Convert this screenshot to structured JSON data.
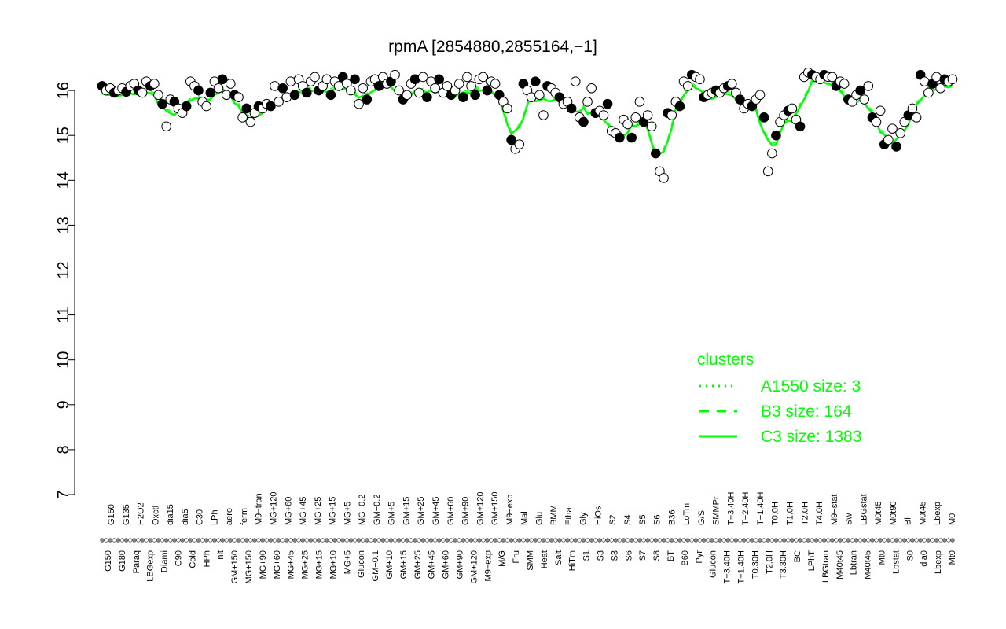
{
  "chart_data": {
    "type": "scatter",
    "title": "rpmA [2854880,2855164,−1]",
    "xlabel": "",
    "ylabel": "",
    "ylim": [
      7,
      16.5
    ],
    "yticks": [
      7,
      8,
      9,
      10,
      11,
      12,
      13,
      14,
      15,
      16
    ],
    "grid": false,
    "legend": {
      "title": "clusters",
      "position": "bottom-right",
      "entries": [
        {
          "label": "A1550 size: 3",
          "style": "dotted"
        },
        {
          "label": "B3 size: 164",
          "style": "dashed"
        },
        {
          "label": "C3 size: 1383",
          "style": "solid"
        }
      ]
    },
    "colors": {
      "clusters": "#00ff00",
      "points": "#000000"
    },
    "xtick_labels_top": [
      "G150",
      "G135",
      "H2O2",
      "Oxctl",
      "dia15",
      "dia5",
      "C30",
      "LPh",
      "aero",
      "ferm",
      "M9−tran",
      "MG+120",
      "MG+60",
      "MG+45",
      "MG+25",
      "MG+15",
      "MG+5",
      "MG−0.2",
      "GM−0.2",
      "GM+5",
      "GM+15",
      "GM+25",
      "GM+45",
      "GM+60",
      "GM+90",
      "GM+120",
      "GM+150",
      "M9−exp",
      "Mal",
      "Glu",
      "BMM",
      "Etha",
      "Gly",
      "HiOs",
      "S2",
      "S4",
      "S5",
      "S6",
      "B36",
      "LoTm",
      "G/S",
      "SMMPr",
      "T−3.40H",
      "T−2.40H",
      "T−1.40H",
      "T0.0H",
      "T1.0H",
      "T2.0H",
      "T4.0H",
      "M9−stat",
      "Sw",
      "LBGstat",
      "M0t45",
      "M0t90",
      "Bl",
      "M0t45",
      "Lbexp",
      "M0"
    ],
    "xtick_labels_bottom": [
      "G150",
      "G180",
      "Paraq",
      "LBGexp",
      "Diami",
      "C90",
      "Cold",
      "HPh",
      "nit",
      "GM+150",
      "MG+150",
      "MG+90",
      "MG+60",
      "MG+45",
      "MG+25",
      "MG+15",
      "MG+10",
      "MG+5",
      "Glucon",
      "GM−0.1",
      "GM+10",
      "GM+15",
      "GM+25",
      "GM+45",
      "GM+60",
      "GM+90",
      "GM+120",
      "M9−exp",
      "M/G",
      "Fru",
      "SMM",
      "Heat",
      "Salt",
      "HiTm",
      "S1",
      "S3",
      "S3",
      "S6",
      "S7",
      "S8",
      "BT",
      "B60",
      "Pyr",
      "Glucon",
      "T−3.40H",
      "T−1.40H",
      "T0.30H",
      "T2.0H",
      "T3.30H",
      "BC",
      "LPhT",
      "LBGtran",
      "M40t45",
      "Lbtran",
      "M40t45",
      "Mt0",
      "Lbstat",
      "S0",
      "dia0",
      "Lbexp",
      "Mt0"
    ],
    "series": [
      {
        "values": [
          [
            1,
            16.1
          ],
          [
            2,
            16.0
          ],
          [
            3,
            16.05
          ],
          [
            4,
            15.95
          ],
          [
            5,
            16.0
          ],
          [
            6,
            16.05
          ],
          [
            7,
            15.97
          ],
          [
            8,
            16.1
          ],
          [
            9,
            16.15
          ],
          [
            10,
            16.0
          ],
          [
            11,
            15.95
          ],
          [
            12,
            16.2
          ],
          [
            13,
            16.1
          ],
          [
            14,
            16.15
          ],
          [
            15,
            15.9
          ],
          [
            16,
            15.7
          ],
          [
            17,
            15.2
          ],
          [
            18,
            15.8
          ],
          [
            19,
            15.75
          ],
          [
            20,
            15.6
          ],
          [
            21,
            15.5
          ],
          [
            22,
            15.65
          ],
          [
            23,
            16.2
          ],
          [
            24,
            16.1
          ],
          [
            25,
            16.0
          ],
          [
            26,
            15.75
          ],
          [
            27,
            15.65
          ],
          [
            28,
            15.95
          ],
          [
            29,
            16.2
          ],
          [
            30,
            16.05
          ],
          [
            31,
            16.25
          ],
          [
            32,
            15.9
          ],
          [
            33,
            16.15
          ],
          [
            34,
            15.9
          ],
          [
            35,
            15.85
          ],
          [
            36,
            15.4
          ],
          [
            37,
            15.6
          ],
          [
            38,
            15.3
          ],
          [
            39,
            15.5
          ],
          [
            40,
            15.65
          ],
          [
            41,
            15.6
          ],
          [
            42,
            15.7
          ],
          [
            43,
            15.65
          ],
          [
            44,
            16.1
          ],
          [
            45,
            15.75
          ],
          [
            46,
            16.05
          ],
          [
            47,
            15.85
          ],
          [
            48,
            16.2
          ],
          [
            49,
            15.9
          ],
          [
            50,
            16.25
          ],
          [
            51,
            16.1
          ],
          [
            52,
            15.95
          ],
          [
            53,
            16.2
          ],
          [
            54,
            16.3
          ],
          [
            55,
            16.0
          ],
          [
            56,
            16.1
          ],
          [
            57,
            16.25
          ],
          [
            58,
            15.9
          ],
          [
            59,
            16.2
          ],
          [
            60,
            16.1
          ],
          [
            61,
            16.3
          ],
          [
            62,
            16.15
          ],
          [
            63,
            16.0
          ],
          [
            64,
            16.25
          ],
          [
            65,
            15.7
          ],
          [
            66,
            16.05
          ],
          [
            67,
            15.8
          ],
          [
            68,
            16.2
          ],
          [
            69,
            16.25
          ],
          [
            70,
            16.1
          ],
          [
            71,
            16.3
          ],
          [
            72,
            16.15
          ],
          [
            73,
            16.2
          ],
          [
            74,
            16.35
          ],
          [
            75,
            16.0
          ],
          [
            76,
            15.8
          ],
          [
            77,
            15.9
          ],
          [
            78,
            16.15
          ],
          [
            79,
            16.25
          ],
          [
            80,
            15.95
          ],
          [
            81,
            16.3
          ],
          [
            82,
            15.85
          ],
          [
            83,
            16.2
          ],
          [
            84,
            16.05
          ],
          [
            85,
            16.25
          ],
          [
            86,
            15.95
          ],
          [
            87,
            16.1
          ],
          [
            88,
            15.9
          ],
          [
            89,
            16.0
          ],
          [
            90,
            16.15
          ],
          [
            91,
            15.85
          ],
          [
            92,
            16.3
          ],
          [
            93,
            16.1
          ],
          [
            94,
            15.9
          ],
          [
            95,
            16.25
          ],
          [
            96,
            16.3
          ],
          [
            97,
            16.0
          ],
          [
            98,
            16.2
          ],
          [
            99,
            16.15
          ],
          [
            100,
            15.9
          ],
          [
            101,
            15.75
          ],
          [
            102,
            15.6
          ],
          [
            103,
            14.9
          ],
          [
            104,
            14.7
          ],
          [
            105,
            14.8
          ],
          [
            106,
            16.15
          ],
          [
            107,
            16.0
          ],
          [
            108,
            15.85
          ],
          [
            109,
            16.2
          ],
          [
            110,
            15.9
          ],
          [
            111,
            15.45
          ],
          [
            112,
            16.1
          ],
          [
            113,
            16.05
          ],
          [
            114,
            15.95
          ],
          [
            115,
            15.85
          ],
          [
            116,
            15.7
          ],
          [
            117,
            15.75
          ],
          [
            118,
            15.6
          ],
          [
            119,
            16.2
          ],
          [
            120,
            15.4
          ],
          [
            121,
            15.3
          ],
          [
            122,
            15.75
          ],
          [
            123,
            16.05
          ],
          [
            124,
            15.5
          ],
          [
            125,
            15.55
          ],
          [
            126,
            15.45
          ],
          [
            127,
            15.7
          ],
          [
            128,
            15.1
          ],
          [
            129,
            15.05
          ],
          [
            130,
            14.95
          ],
          [
            131,
            15.35
          ],
          [
            132,
            15.25
          ],
          [
            133,
            14.95
          ],
          [
            134,
            15.4
          ],
          [
            135,
            15.75
          ],
          [
            136,
            15.3
          ],
          [
            137,
            15.45
          ],
          [
            138,
            15.2
          ],
          [
            139,
            14.6
          ],
          [
            140,
            14.2
          ],
          [
            141,
            14.05
          ],
          [
            142,
            15.5
          ],
          [
            143,
            15.45
          ],
          [
            144,
            15.75
          ],
          [
            145,
            15.65
          ],
          [
            146,
            16.2
          ],
          [
            147,
            16.1
          ],
          [
            148,
            16.35
          ],
          [
            149,
            16.3
          ],
          [
            150,
            16.25
          ],
          [
            151,
            15.85
          ],
          [
            152,
            15.9
          ],
          [
            153,
            15.95
          ],
          [
            154,
            16.0
          ],
          [
            155,
            15.95
          ],
          [
            156,
            16.05
          ],
          [
            157,
            16.1
          ],
          [
            158,
            16.15
          ],
          [
            159,
            15.95
          ],
          [
            160,
            15.8
          ],
          [
            161,
            15.6
          ],
          [
            162,
            15.7
          ],
          [
            163,
            15.65
          ],
          [
            164,
            15.8
          ],
          [
            165,
            15.9
          ],
          [
            166,
            15.4
          ],
          [
            167,
            14.2
          ],
          [
            168,
            14.6
          ],
          [
            169,
            15.0
          ],
          [
            170,
            15.3
          ],
          [
            171,
            15.45
          ],
          [
            172,
            15.55
          ],
          [
            173,
            15.6
          ],
          [
            174,
            15.35
          ],
          [
            175,
            15.2
          ],
          [
            176,
            16.3
          ],
          [
            177,
            16.4
          ],
          [
            178,
            16.35
          ],
          [
            179,
            16.3
          ],
          [
            180,
            16.25
          ],
          [
            181,
            16.35
          ],
          [
            182,
            16.3
          ],
          [
            183,
            16.3
          ],
          [
            184,
            16.1
          ],
          [
            185,
            16.2
          ],
          [
            186,
            16.15
          ],
          [
            187,
            15.8
          ],
          [
            188,
            15.75
          ],
          [
            189,
            15.9
          ],
          [
            190,
            16.0
          ],
          [
            191,
            15.8
          ],
          [
            192,
            16.1
          ],
          [
            193,
            15.4
          ],
          [
            194,
            15.3
          ],
          [
            195,
            15.55
          ],
          [
            196,
            14.8
          ],
          [
            197,
            14.9
          ],
          [
            198,
            15.15
          ],
          [
            199,
            14.75
          ],
          [
            200,
            15.05
          ],
          [
            201,
            15.3
          ],
          [
            202,
            15.45
          ],
          [
            203,
            15.6
          ],
          [
            204,
            15.4
          ],
          [
            205,
            16.35
          ],
          [
            206,
            16.2
          ],
          [
            207,
            15.95
          ],
          [
            208,
            16.15
          ],
          [
            209,
            16.3
          ],
          [
            210,
            16.05
          ],
          [
            211,
            16.25
          ],
          [
            212,
            16.2
          ],
          [
            213,
            16.25
          ]
        ]
      }
    ]
  }
}
